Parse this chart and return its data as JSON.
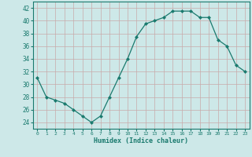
{
  "x": [
    0,
    1,
    2,
    3,
    4,
    5,
    6,
    7,
    8,
    9,
    10,
    11,
    12,
    13,
    14,
    15,
    16,
    17,
    18,
    19,
    20,
    21,
    22,
    23
  ],
  "y": [
    31,
    28,
    27.5,
    27,
    26,
    25,
    24,
    25,
    28,
    31,
    34,
    37.5,
    39.5,
    40,
    40.5,
    41.5,
    41.5,
    41.5,
    40.5,
    40.5,
    37,
    36,
    33,
    32
  ],
  "line_color": "#1a7a6e",
  "marker_color": "#1a7a6e",
  "bg_color": "#cde8e8",
  "grid_color": "#b0cccc",
  "xlabel": "Humidex (Indice chaleur)",
  "ylim": [
    23,
    43
  ],
  "xlim": [
    -0.5,
    23.5
  ],
  "yticks": [
    24,
    26,
    28,
    30,
    32,
    34,
    36,
    38,
    40,
    42
  ],
  "xticks": [
    0,
    1,
    2,
    3,
    4,
    5,
    6,
    7,
    8,
    9,
    10,
    11,
    12,
    13,
    14,
    15,
    16,
    17,
    18,
    19,
    20,
    21,
    22,
    23
  ]
}
